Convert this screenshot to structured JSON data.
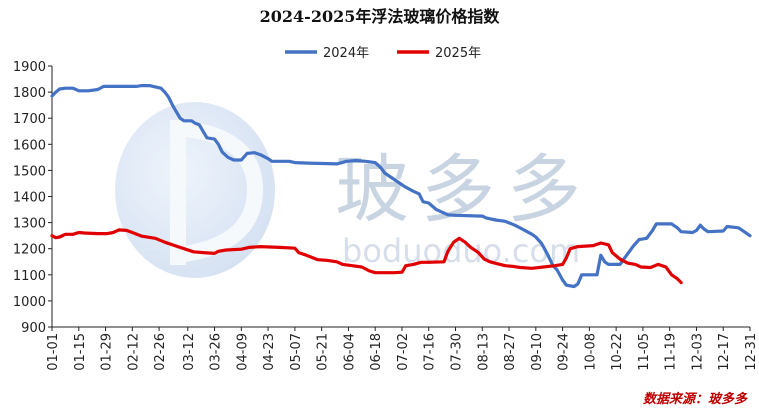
{
  "chart_data": {
    "type": "line",
    "title": "2024-2025年浮法玻璃价格指数",
    "source": "数据来源：玻多多",
    "watermark": {
      "cn": "玻多多",
      "en": "boduoduo.com"
    },
    "ylim": [
      900,
      1900
    ],
    "yticks": [
      900,
      1000,
      1100,
      1200,
      1300,
      1400,
      1500,
      1600,
      1700,
      1800,
      1900
    ],
    "xlim": [
      1,
      366
    ],
    "xticks": [
      {
        "day": 1,
        "label": "01-01"
      },
      {
        "day": 15,
        "label": "01-15"
      },
      {
        "day": 29,
        "label": "01-29"
      },
      {
        "day": 43,
        "label": "02-12"
      },
      {
        "day": 57,
        "label": "02-26"
      },
      {
        "day": 72,
        "label": "03-12"
      },
      {
        "day": 86,
        "label": "03-26"
      },
      {
        "day": 100,
        "label": "04-09"
      },
      {
        "day": 114,
        "label": "04-23"
      },
      {
        "day": 128,
        "label": "05-07"
      },
      {
        "day": 142,
        "label": "05-21"
      },
      {
        "day": 156,
        "label": "06-04"
      },
      {
        "day": 170,
        "label": "06-18"
      },
      {
        "day": 184,
        "label": "07-02"
      },
      {
        "day": 198,
        "label": "07-16"
      },
      {
        "day": 212,
        "label": "07-30"
      },
      {
        "day": 226,
        "label": "08-13"
      },
      {
        "day": 240,
        "label": "08-27"
      },
      {
        "day": 254,
        "label": "09-10"
      },
      {
        "day": 268,
        "label": "09-24"
      },
      {
        "day": 282,
        "label": "10-08"
      },
      {
        "day": 296,
        "label": "10-22"
      },
      {
        "day": 310,
        "label": "11-05"
      },
      {
        "day": 324,
        "label": "11-19"
      },
      {
        "day": 338,
        "label": "12-03"
      },
      {
        "day": 352,
        "label": "12-17"
      },
      {
        "day": 366,
        "label": "12-31"
      }
    ],
    "legend": {
      "placement": "top-center"
    },
    "grid": false,
    "series": [
      {
        "name": "2024年",
        "color": "#4472c4",
        "points": [
          [
            1,
            1785
          ],
          [
            3,
            1800
          ],
          [
            5,
            1812
          ],
          [
            8,
            1815
          ],
          [
            12,
            1815
          ],
          [
            15,
            1805
          ],
          [
            20,
            1805
          ],
          [
            25,
            1810
          ],
          [
            28,
            1822
          ],
          [
            40,
            1822
          ],
          [
            45,
            1822
          ],
          [
            48,
            1825
          ],
          [
            52,
            1825
          ],
          [
            55,
            1820
          ],
          [
            58,
            1815
          ],
          [
            60,
            1800
          ],
          [
            62,
            1780
          ],
          [
            64,
            1750
          ],
          [
            66,
            1725
          ],
          [
            68,
            1700
          ],
          [
            70,
            1690
          ],
          [
            74,
            1690
          ],
          [
            76,
            1680
          ],
          [
            78,
            1675
          ],
          [
            80,
            1650
          ],
          [
            82,
            1625
          ],
          [
            86,
            1620
          ],
          [
            88,
            1600
          ],
          [
            90,
            1570
          ],
          [
            93,
            1550
          ],
          [
            96,
            1540
          ],
          [
            100,
            1540
          ],
          [
            103,
            1565
          ],
          [
            107,
            1568
          ],
          [
            110,
            1560
          ],
          [
            114,
            1545
          ],
          [
            116,
            1535
          ],
          [
            125,
            1535
          ],
          [
            128,
            1530
          ],
          [
            135,
            1528
          ],
          [
            150,
            1525
          ],
          [
            155,
            1535
          ],
          [
            160,
            1538
          ],
          [
            165,
            1535
          ],
          [
            170,
            1530
          ],
          [
            173,
            1510
          ],
          [
            175,
            1490
          ],
          [
            180,
            1465
          ],
          [
            185,
            1440
          ],
          [
            190,
            1420
          ],
          [
            193,
            1410
          ],
          [
            195,
            1380
          ],
          [
            198,
            1375
          ],
          [
            202,
            1350
          ],
          [
            205,
            1340
          ],
          [
            208,
            1330
          ],
          [
            212,
            1328
          ],
          [
            226,
            1325
          ],
          [
            228,
            1318
          ],
          [
            233,
            1310
          ],
          [
            238,
            1305
          ],
          [
            243,
            1290
          ],
          [
            247,
            1275
          ],
          [
            252,
            1255
          ],
          [
            254,
            1245
          ],
          [
            257,
            1220
          ],
          [
            260,
            1180
          ],
          [
            263,
            1135
          ],
          [
            265,
            1120
          ],
          [
            268,
            1080
          ],
          [
            270,
            1060
          ],
          [
            274,
            1055
          ],
          [
            276,
            1065
          ],
          [
            278,
            1100
          ],
          [
            286,
            1100
          ],
          [
            288,
            1175
          ],
          [
            290,
            1150
          ],
          [
            292,
            1140
          ],
          [
            298,
            1140
          ],
          [
            300,
            1160
          ],
          [
            302,
            1180
          ],
          [
            305,
            1210
          ],
          [
            308,
            1235
          ],
          [
            312,
            1240
          ],
          [
            315,
            1270
          ],
          [
            317,
            1295
          ],
          [
            325,
            1295
          ],
          [
            328,
            1280
          ],
          [
            330,
            1265
          ],
          [
            336,
            1262
          ],
          [
            338,
            1270
          ],
          [
            340,
            1290
          ],
          [
            342,
            1275
          ],
          [
            344,
            1265
          ],
          [
            352,
            1268
          ],
          [
            354,
            1285
          ],
          [
            360,
            1280
          ],
          [
            362,
            1270
          ],
          [
            366,
            1250
          ]
        ]
      },
      {
        "name": "2025年",
        "color": "#e00000",
        "points": [
          [
            1,
            1250
          ],
          [
            3,
            1242
          ],
          [
            5,
            1245
          ],
          [
            8,
            1255
          ],
          [
            12,
            1255
          ],
          [
            15,
            1262
          ],
          [
            18,
            1260
          ],
          [
            25,
            1258
          ],
          [
            30,
            1258
          ],
          [
            33,
            1262
          ],
          [
            36,
            1272
          ],
          [
            40,
            1270
          ],
          [
            43,
            1262
          ],
          [
            48,
            1248
          ],
          [
            55,
            1240
          ],
          [
            60,
            1225
          ],
          [
            66,
            1210
          ],
          [
            70,
            1200
          ],
          [
            75,
            1188
          ],
          [
            80,
            1185
          ],
          [
            86,
            1182
          ],
          [
            88,
            1190
          ],
          [
            92,
            1195
          ],
          [
            100,
            1198
          ],
          [
            104,
            1205
          ],
          [
            110,
            1208
          ],
          [
            120,
            1205
          ],
          [
            128,
            1202
          ],
          [
            130,
            1185
          ],
          [
            134,
            1175
          ],
          [
            140,
            1158
          ],
          [
            145,
            1155
          ],
          [
            150,
            1150
          ],
          [
            153,
            1140
          ],
          [
            158,
            1135
          ],
          [
            163,
            1130
          ],
          [
            167,
            1115
          ],
          [
            170,
            1108
          ],
          [
            180,
            1108
          ],
          [
            184,
            1110
          ],
          [
            186,
            1135
          ],
          [
            190,
            1140
          ],
          [
            194,
            1148
          ],
          [
            198,
            1148
          ],
          [
            206,
            1150
          ],
          [
            208,
            1190
          ],
          [
            211,
            1225
          ],
          [
            214,
            1240
          ],
          [
            217,
            1225
          ],
          [
            220,
            1205
          ],
          [
            224,
            1185
          ],
          [
            227,
            1160
          ],
          [
            230,
            1150
          ],
          [
            234,
            1142
          ],
          [
            238,
            1135
          ],
          [
            242,
            1132
          ],
          [
            246,
            1128
          ],
          [
            252,
            1125
          ],
          [
            258,
            1130
          ],
          [
            264,
            1135
          ],
          [
            268,
            1140
          ],
          [
            270,
            1165
          ],
          [
            272,
            1200
          ],
          [
            276,
            1208
          ],
          [
            280,
            1210
          ],
          [
            284,
            1212
          ],
          [
            288,
            1222
          ],
          [
            292,
            1215
          ],
          [
            294,
            1185
          ],
          [
            298,
            1160
          ],
          [
            302,
            1145
          ],
          [
            306,
            1140
          ],
          [
            309,
            1130
          ],
          [
            314,
            1128
          ],
          [
            318,
            1140
          ],
          [
            322,
            1130
          ],
          [
            325,
            1100
          ],
          [
            328,
            1085
          ],
          [
            330,
            1070
          ]
        ]
      }
    ]
  }
}
